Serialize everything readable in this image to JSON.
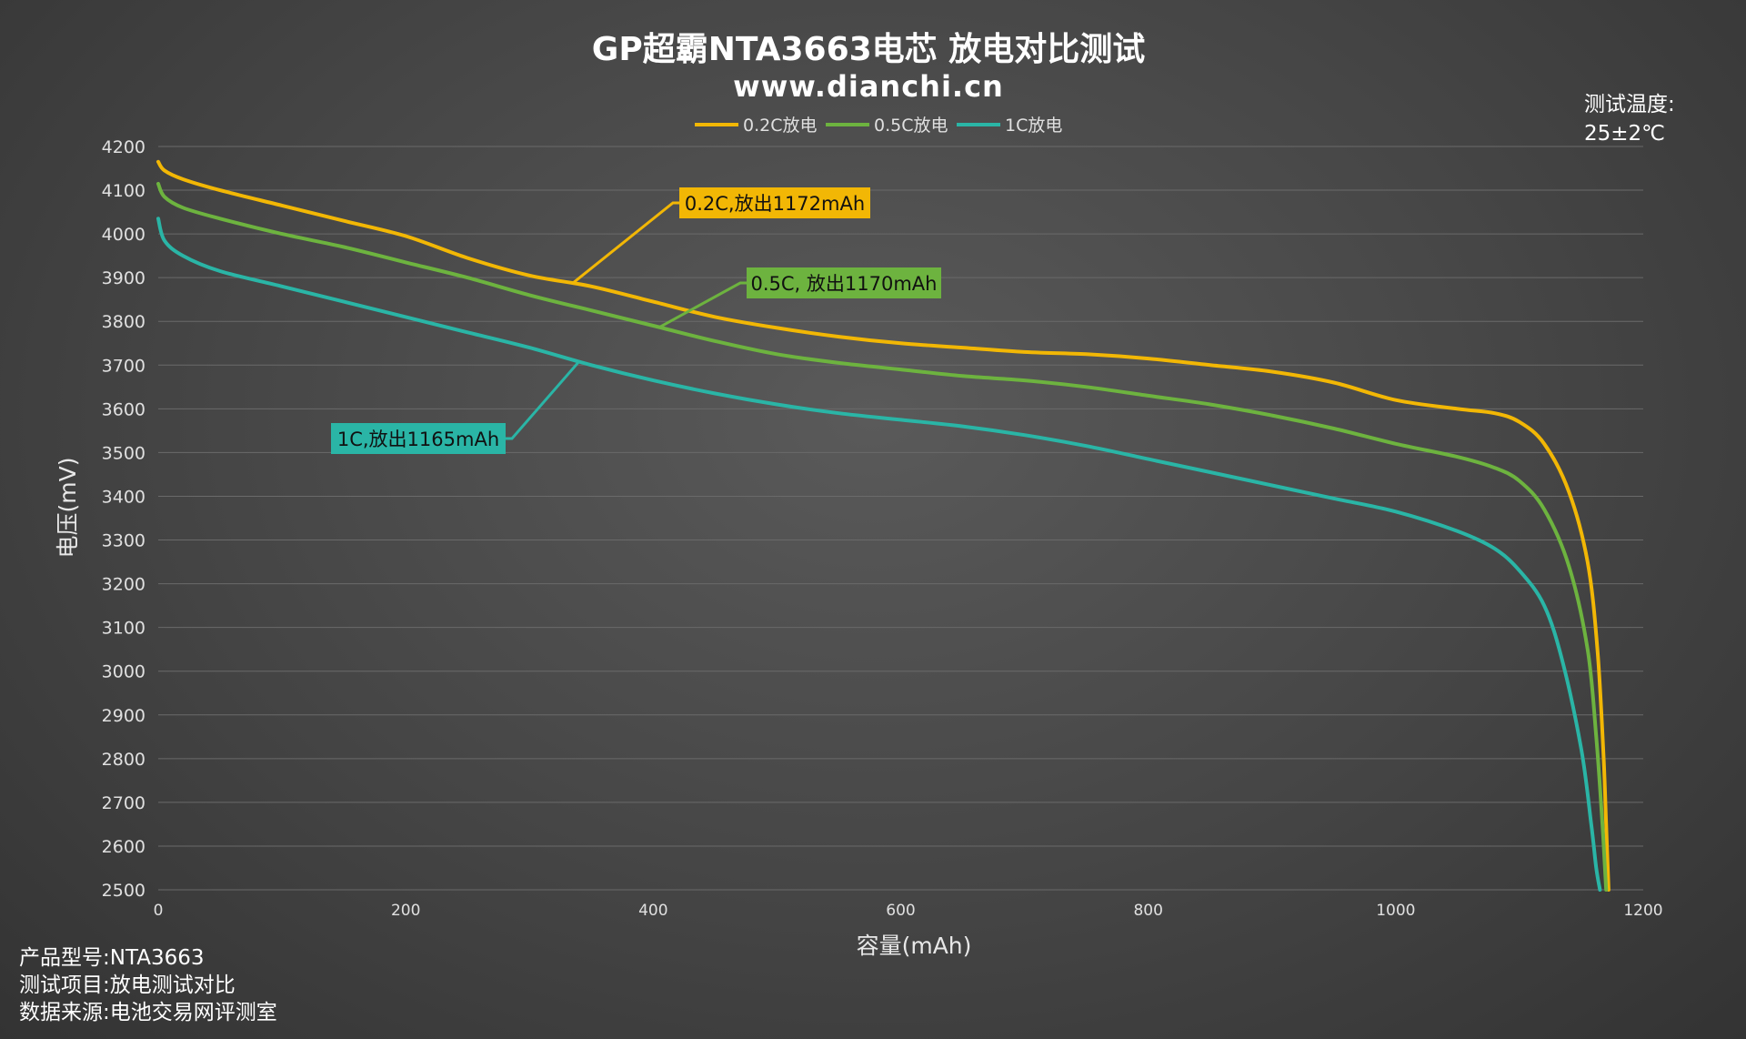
{
  "header": {
    "title": "GP超霸NTA3663电芯 放电对比测试",
    "subtitle": "www.dianchi.cn"
  },
  "temperature_note": {
    "label": "测试温度:",
    "value": "25±2℃"
  },
  "info": {
    "product": "产品型号:NTA3663",
    "test_item": "测试项目:放电测试对比",
    "source": "数据来源:电池交易网评测室"
  },
  "annotations": [
    {
      "text": "0.2C,放出1172mAh",
      "series": 0,
      "at_x": 335,
      "color": "#f2b705"
    },
    {
      "text": "0.5C, 放出1170mAh",
      "series": 1,
      "at_x": 405,
      "color": "#6db33f"
    },
    {
      "text": "1C,放出1165mAh",
      "series": 2,
      "at_x": 340,
      "color": "#2ab5a6"
    }
  ],
  "chart_data": {
    "type": "line",
    "title": "GP超霸NTA3663电芯 放电对比测试",
    "subtitle": "www.dianchi.cn",
    "xlabel": "容量(mAh)",
    "ylabel": "电压(mV)",
    "xlim": [
      0,
      1200
    ],
    "ylim": [
      2500,
      4200
    ],
    "x_ticks": [
      0,
      200,
      400,
      600,
      800,
      1000,
      1200
    ],
    "y_ticks": [
      2500,
      2600,
      2700,
      2800,
      2900,
      3000,
      3100,
      3200,
      3300,
      3400,
      3500,
      3600,
      3700,
      3800,
      3900,
      4000,
      4100,
      4200
    ],
    "grid": true,
    "legend_position": "top-center",
    "series": [
      {
        "name": "0.2C放电",
        "color": "#f2b705",
        "points": [
          [
            0,
            4165
          ],
          [
            5,
            4145
          ],
          [
            20,
            4125
          ],
          [
            50,
            4100
          ],
          [
            100,
            4065
          ],
          [
            150,
            4030
          ],
          [
            200,
            3995
          ],
          [
            250,
            3945
          ],
          [
            300,
            3905
          ],
          [
            350,
            3880
          ],
          [
            400,
            3845
          ],
          [
            450,
            3810
          ],
          [
            500,
            3785
          ],
          [
            550,
            3765
          ],
          [
            600,
            3750
          ],
          [
            650,
            3740
          ],
          [
            700,
            3730
          ],
          [
            750,
            3725
          ],
          [
            800,
            3715
          ],
          [
            850,
            3700
          ],
          [
            900,
            3685
          ],
          [
            950,
            3660
          ],
          [
            1000,
            3620
          ],
          [
            1050,
            3600
          ],
          [
            1080,
            3590
          ],
          [
            1100,
            3570
          ],
          [
            1120,
            3520
          ],
          [
            1140,
            3410
          ],
          [
            1155,
            3250
          ],
          [
            1163,
            3050
          ],
          [
            1168,
            2800
          ],
          [
            1170,
            2650
          ],
          [
            1172,
            2500
          ]
        ]
      },
      {
        "name": "0.5C放电",
        "color": "#6db33f",
        "points": [
          [
            0,
            4115
          ],
          [
            5,
            4085
          ],
          [
            20,
            4060
          ],
          [
            50,
            4035
          ],
          [
            100,
            4000
          ],
          [
            150,
            3970
          ],
          [
            200,
            3935
          ],
          [
            250,
            3900
          ],
          [
            300,
            3860
          ],
          [
            350,
            3825
          ],
          [
            400,
            3790
          ],
          [
            450,
            3755
          ],
          [
            500,
            3725
          ],
          [
            550,
            3705
          ],
          [
            600,
            3690
          ],
          [
            650,
            3675
          ],
          [
            700,
            3665
          ],
          [
            750,
            3650
          ],
          [
            800,
            3630
          ],
          [
            850,
            3610
          ],
          [
            900,
            3585
          ],
          [
            950,
            3555
          ],
          [
            1000,
            3520
          ],
          [
            1050,
            3490
          ],
          [
            1080,
            3465
          ],
          [
            1100,
            3435
          ],
          [
            1120,
            3370
          ],
          [
            1140,
            3240
          ],
          [
            1155,
            3050
          ],
          [
            1162,
            2850
          ],
          [
            1167,
            2650
          ],
          [
            1170,
            2500
          ]
        ]
      },
      {
        "name": "1C放电",
        "color": "#2ab5a6",
        "points": [
          [
            0,
            4035
          ],
          [
            5,
            3985
          ],
          [
            20,
            3950
          ],
          [
            50,
            3915
          ],
          [
            100,
            3880
          ],
          [
            150,
            3845
          ],
          [
            200,
            3810
          ],
          [
            250,
            3775
          ],
          [
            300,
            3740
          ],
          [
            350,
            3700
          ],
          [
            400,
            3665
          ],
          [
            450,
            3635
          ],
          [
            500,
            3610
          ],
          [
            550,
            3590
          ],
          [
            600,
            3575
          ],
          [
            650,
            3560
          ],
          [
            700,
            3540
          ],
          [
            750,
            3515
          ],
          [
            800,
            3485
          ],
          [
            850,
            3455
          ],
          [
            900,
            3425
          ],
          [
            950,
            3395
          ],
          [
            1000,
            3365
          ],
          [
            1050,
            3320
          ],
          [
            1080,
            3280
          ],
          [
            1100,
            3230
          ],
          [
            1120,
            3150
          ],
          [
            1135,
            3020
          ],
          [
            1150,
            2820
          ],
          [
            1158,
            2650
          ],
          [
            1162,
            2550
          ],
          [
            1165,
            2500
          ]
        ]
      }
    ]
  }
}
